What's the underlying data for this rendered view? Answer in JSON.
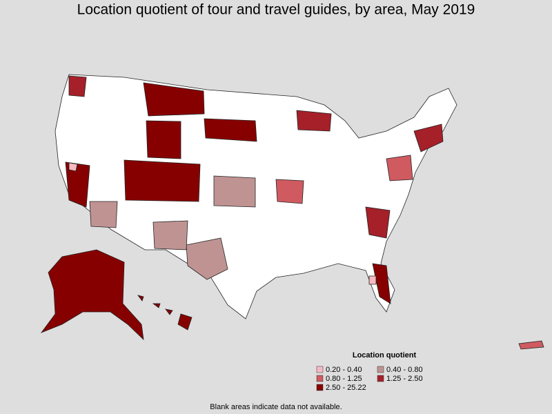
{
  "title": "Location quotient of tour and travel guides, by area, May 2019",
  "legend": {
    "title": "Location quotient",
    "items": [
      {
        "label": "0.20 - 0.40",
        "color": "#f6b9c2"
      },
      {
        "label": "0.40 - 0.80",
        "color": "#c09393"
      },
      {
        "label": "0.80 - 1.25",
        "color": "#cf5a60"
      },
      {
        "label": "1.25 - 2.50",
        "color": "#a52029"
      },
      {
        "label": "2.50 - 25.22",
        "color": "#870000"
      }
    ]
  },
  "footnote": "Blank areas indicate data not available."
}
